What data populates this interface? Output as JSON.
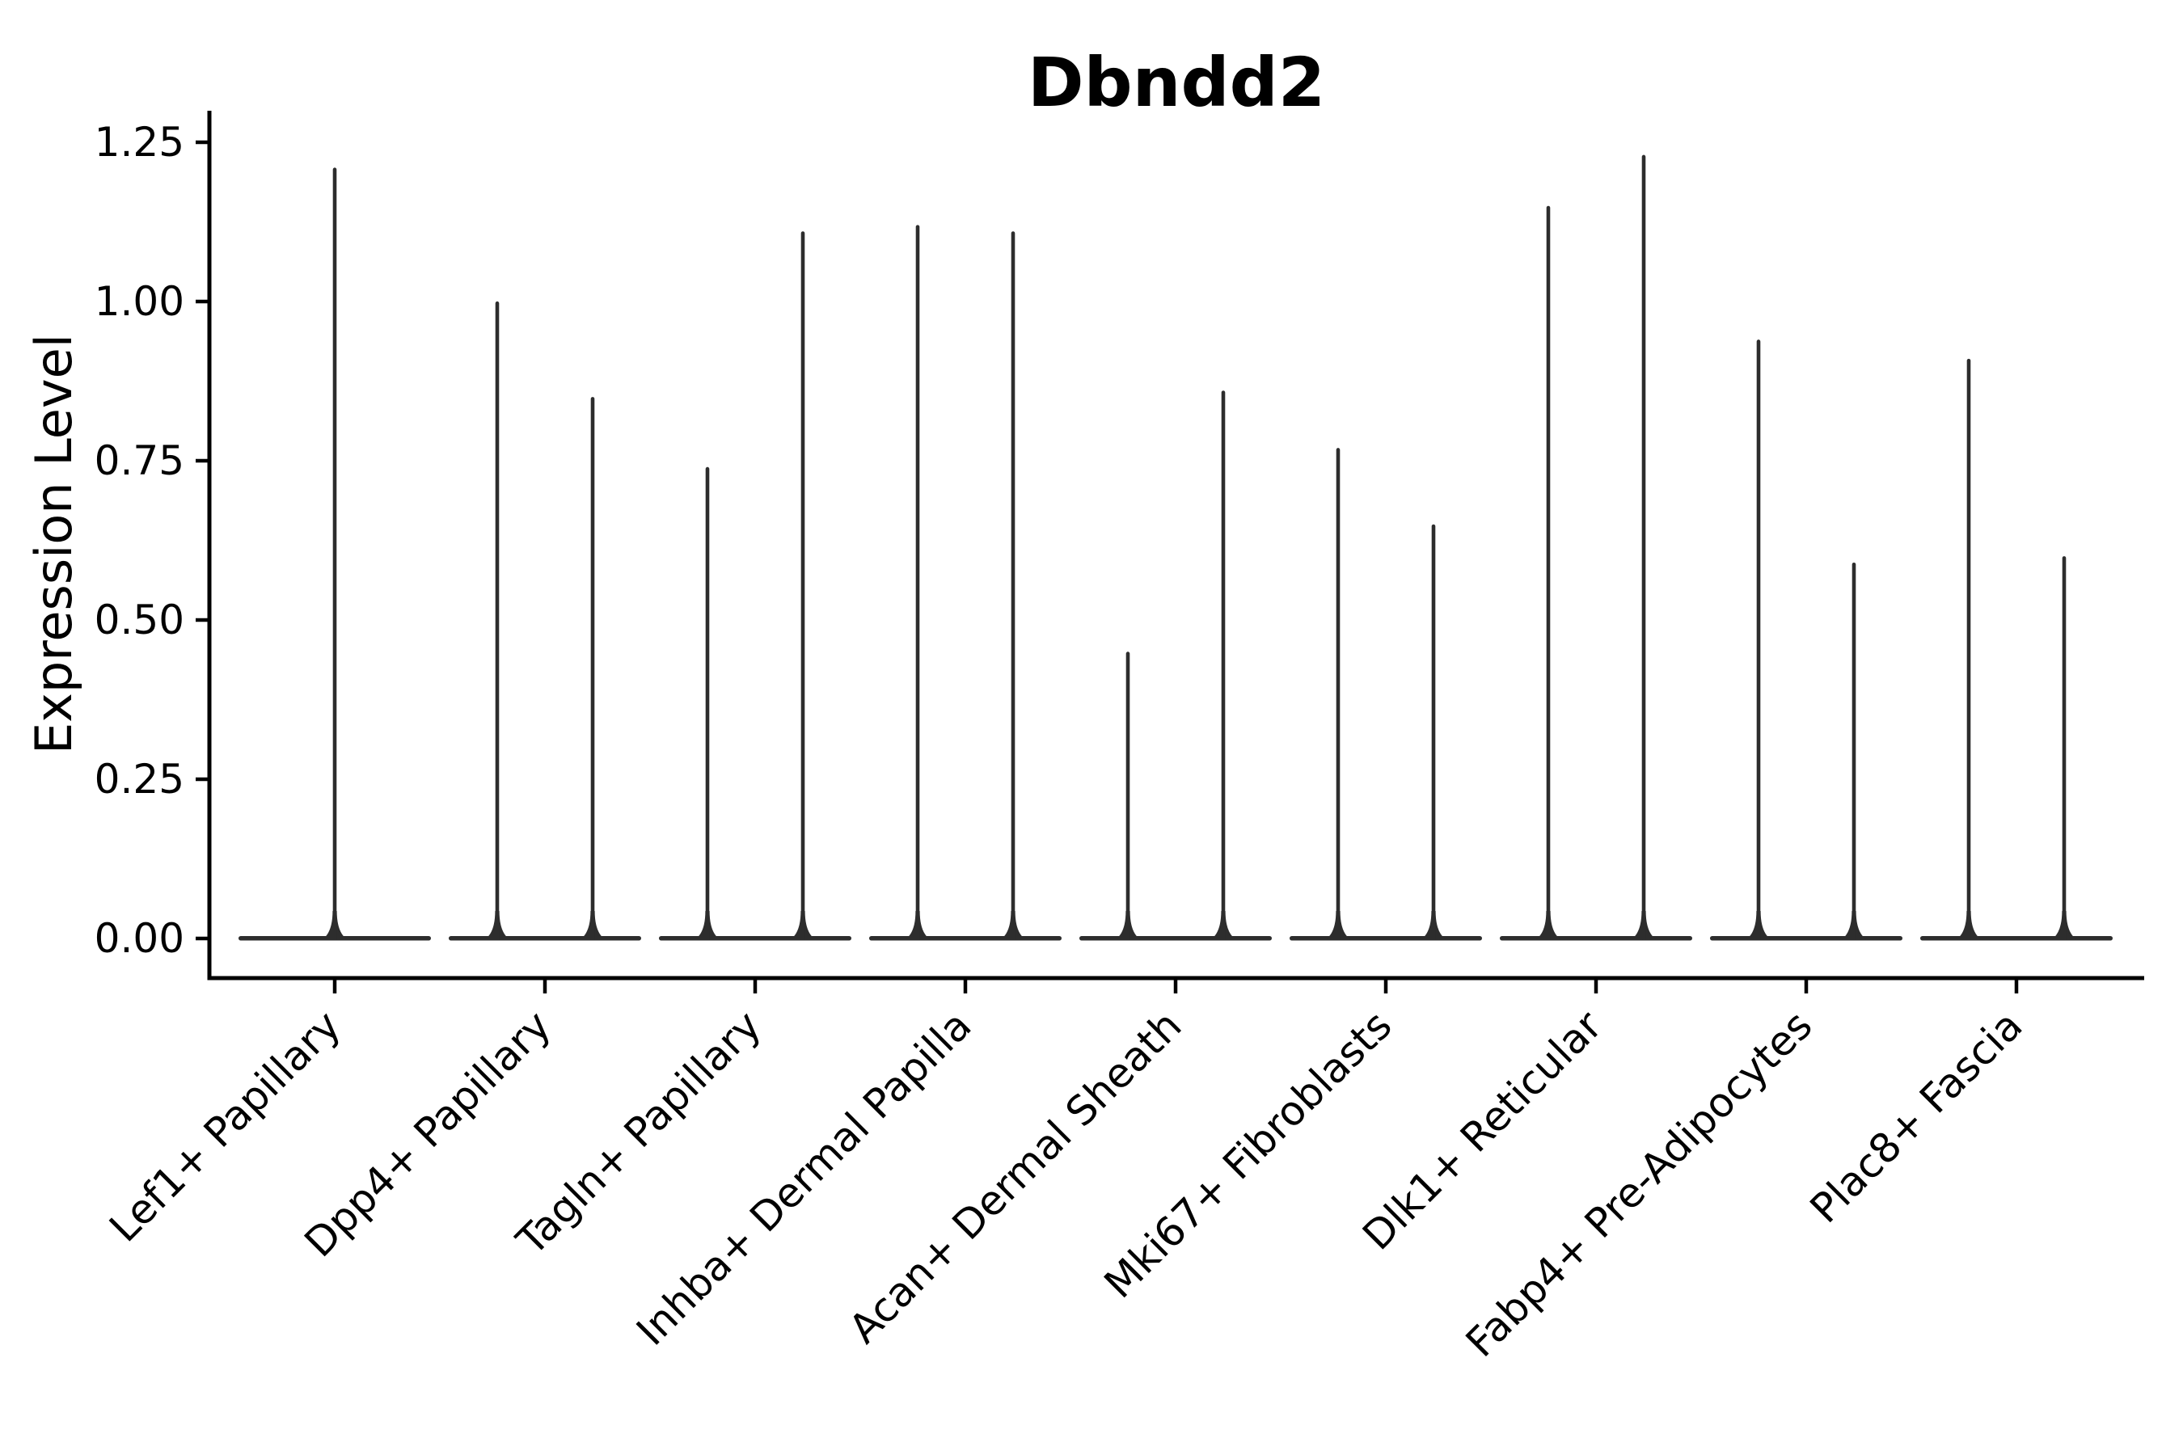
{
  "chart_data": {
    "type": "violin",
    "title": "Dbndd2",
    "ylabel": "Expression Level",
    "xlabel": "",
    "ylim": [
      0,
      1.25
    ],
    "grid": false,
    "legend": "none",
    "yticks": [
      {
        "label": "0.00",
        "value": 0.0
      },
      {
        "label": "0.25",
        "value": 0.25
      },
      {
        "label": "0.50",
        "value": 0.5
      },
      {
        "label": "0.75",
        "value": 0.75
      },
      {
        "label": "1.00",
        "value": 1.0
      },
      {
        "label": "1.25",
        "value": 1.25
      }
    ],
    "categories": [
      "Lef1+ Papillary",
      "Dpp4+ Papillary",
      "Tagln+ Papillary",
      "Inhba+ Dermal Papilla",
      "Acan+ Dermal Sheath",
      "Mki67+ Fibroblasts",
      "Dlk1+ Reticular",
      "Fabp4+ Pre-Adipocytes",
      "Plac8+ Fascia"
    ],
    "violins": [
      {
        "category": "Lef1+ Papillary",
        "spike_max_values": [
          1.21
        ]
      },
      {
        "category": "Dpp4+ Papillary",
        "spike_max_values": [
          1.0,
          0.85
        ]
      },
      {
        "category": "Tagln+ Papillary",
        "spike_max_values": [
          0.74,
          1.11
        ]
      },
      {
        "category": "Inhba+ Dermal Papilla",
        "spike_max_values": [
          1.12,
          1.11
        ]
      },
      {
        "category": "Acan+ Dermal Sheath",
        "spike_max_values": [
          0.45,
          0.86
        ]
      },
      {
        "category": "Mki67+ Fibroblasts",
        "spike_max_values": [
          0.77,
          0.65
        ]
      },
      {
        "category": "Dlk1+ Reticular",
        "spike_max_values": [
          1.15,
          1.23
        ]
      },
      {
        "category": "Fabp4+ Pre-Adipocytes",
        "spike_max_values": [
          0.94,
          0.59
        ]
      },
      {
        "category": "Plac8+ Fascia",
        "spike_max_values": [
          0.91,
          0.6
        ]
      }
    ],
    "distribution_note": "Each violin is flat at 0 (density mass at zero) with a thin spike reaching its maximum expression value",
    "colors": {
      "violin": "#2d2d2d",
      "axis": "#000000",
      "text": "#000000",
      "background": "#ffffff"
    }
  }
}
